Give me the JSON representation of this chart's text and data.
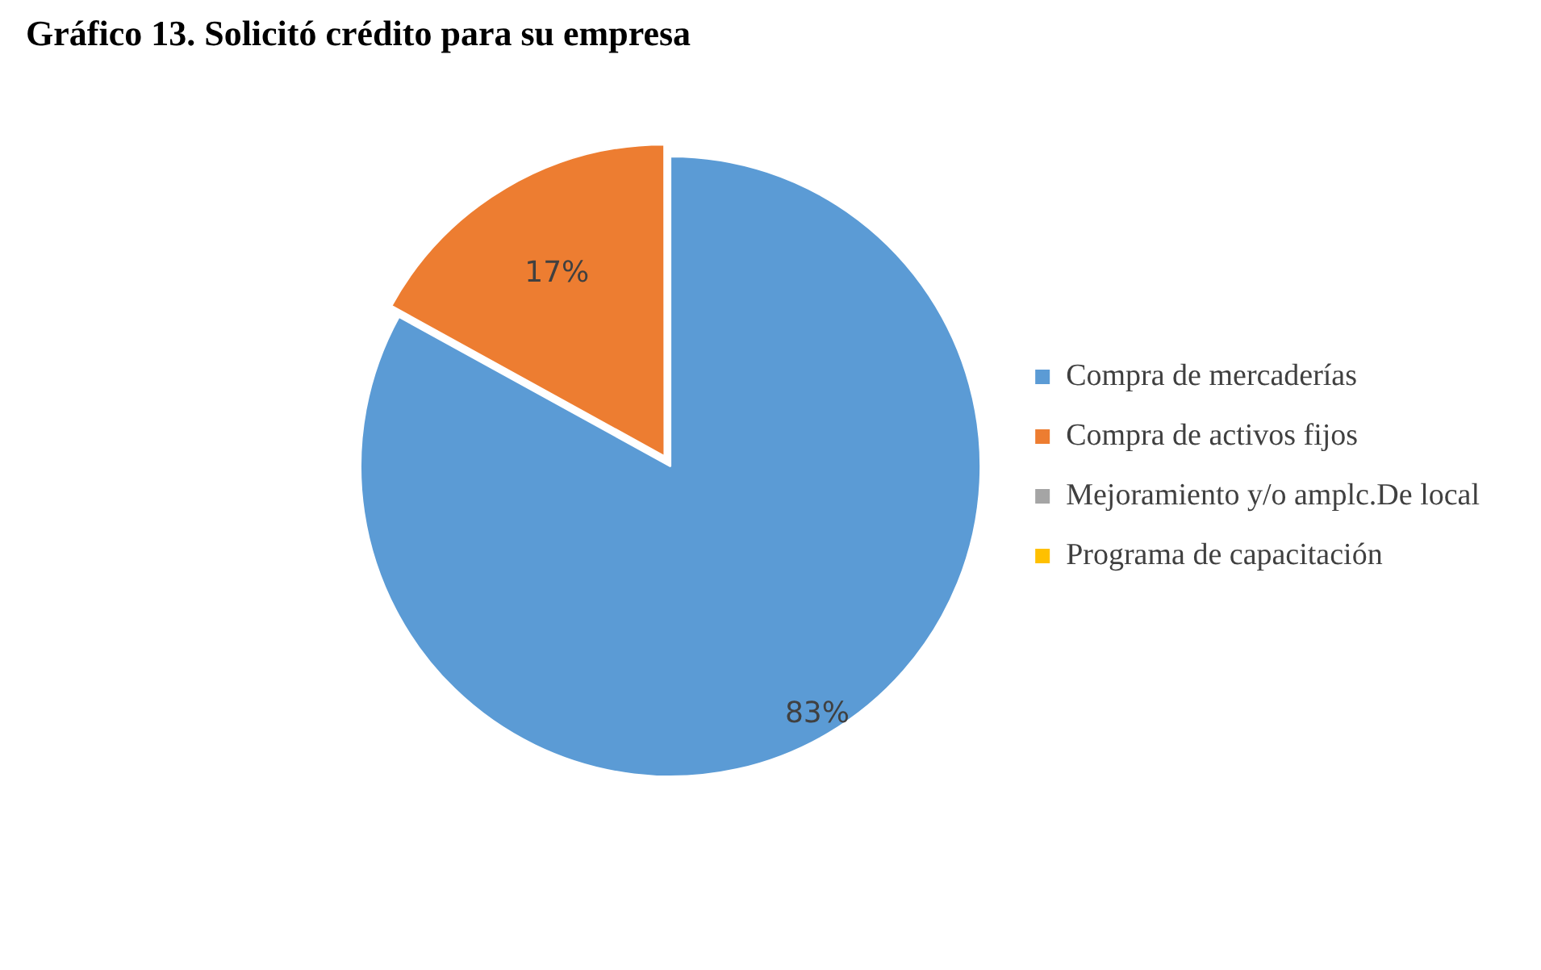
{
  "chart_data": {
    "type": "pie",
    "title": "Gráfico 13. Solicitó crédito para su empresa",
    "categories": [
      "Compra de mercaderías",
      "Compra de activos fijos",
      "Mejoramiento y/o amplc.De local",
      "Programa de capacitación"
    ],
    "values": [
      83,
      17,
      0,
      0
    ],
    "colors": [
      "#5b9bd5",
      "#ed7d31",
      "#a5a5a5",
      "#ffc000"
    ],
    "value_labels": [
      "83%",
      "17%",
      null,
      null
    ],
    "legend": "right"
  }
}
